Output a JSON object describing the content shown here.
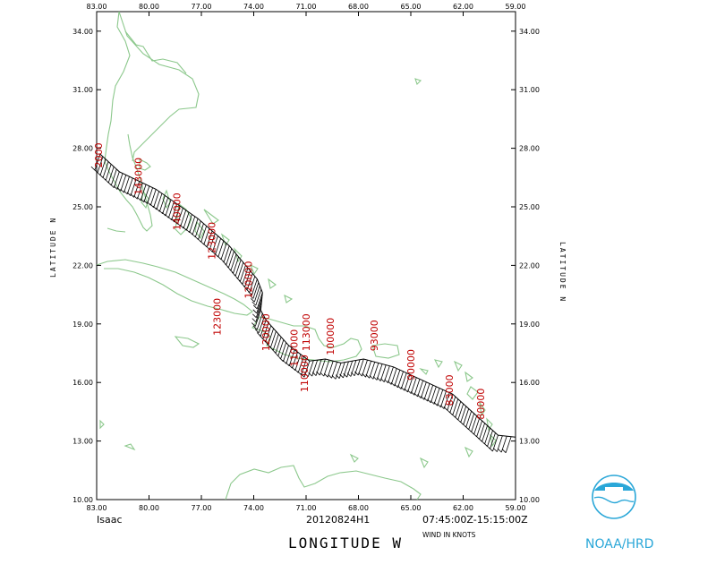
{
  "x_ticks": [
    "83.00",
    "80.00",
    "77.00",
    "74.00",
    "71.00",
    "68.00",
    "65.00",
    "62.00",
    "59.00"
  ],
  "y_ticks": [
    "10.00",
    "13.00",
    "16.00",
    "19.00",
    "22.00",
    "25.00",
    "28.00",
    "31.00",
    "34.00"
  ],
  "storm": "Isaac",
  "flight_id": "20120824H1",
  "time_range": "07:45:00Z-15:15:00Z",
  "wind_units": "WIND IN KNOTS",
  "x_axis_title": "LONGITUDE    W",
  "y_axis_title": "LATITUDE   N",
  "logo_text": "NOAA/HRD",
  "colors": {
    "coastline": "#8cc88c",
    "altitude_labels": "#c00000",
    "logo": "#2aa7d8"
  },
  "chart_data": {
    "type": "map",
    "x_range": [
      -83,
      -59
    ],
    "y_range": [
      10,
      35
    ],
    "track_points": [
      {
        "lon": -82.8,
        "lat": 27.7
      },
      {
        "lon": -81.7,
        "lat": 26.8
      },
      {
        "lon": -79.6,
        "lat": 25.9
      },
      {
        "lon": -77.2,
        "lat": 24.4
      },
      {
        "lon": -75.4,
        "lat": 23.0
      },
      {
        "lon": -73.8,
        "lat": 21.3
      },
      {
        "lon": -73.5,
        "lat": 20.6
      },
      {
        "lon": -73.6,
        "lat": 19.7
      },
      {
        "lon": -73.3,
        "lat": 19.2
      },
      {
        "lon": -72.0,
        "lat": 17.9
      },
      {
        "lon": -70.8,
        "lat": 17.1
      },
      {
        "lon": -69.9,
        "lat": 17.2
      },
      {
        "lon": -69.0,
        "lat": 17.0
      },
      {
        "lon": -67.7,
        "lat": 17.2
      },
      {
        "lon": -66.0,
        "lat": 16.8
      },
      {
        "lon": -62.6,
        "lat": 15.4
      },
      {
        "lon": -60.0,
        "lat": 13.3
      },
      {
        "lon": -59.0,
        "lat": 13.2
      }
    ],
    "altitude_labels": [
      {
        "text": "2000",
        "lon": -82.7,
        "lat": 27.0
      },
      {
        "text": "143000",
        "lon": -80.4,
        "lat": 25.6
      },
      {
        "text": "140000",
        "lon": -78.2,
        "lat": 23.8
      },
      {
        "text": "123000",
        "lon": -76.2,
        "lat": 22.3
      },
      {
        "text": "120000",
        "lon": -74.1,
        "lat": 20.3
      },
      {
        "text": "123000",
        "lon": -75.9,
        "lat": 18.4
      },
      {
        "text": "120000",
        "lon": -73.1,
        "lat": 17.6
      },
      {
        "text": "110000",
        "lon": -71.5,
        "lat": 16.8
      },
      {
        "text": "113000",
        "lon": -70.8,
        "lat": 17.6
      },
      {
        "text": "110000",
        "lon": -70.9,
        "lat": 15.5
      },
      {
        "text": "100000",
        "lon": -69.4,
        "lat": 17.4
      },
      {
        "text": "93000",
        "lon": -66.9,
        "lat": 17.6
      },
      {
        "text": "90000",
        "lon": -64.8,
        "lat": 16.1
      },
      {
        "text": "83000",
        "lon": -62.6,
        "lat": 14.8
      },
      {
        "text": "80000",
        "lon": -60.8,
        "lat": 14.1
      }
    ]
  }
}
